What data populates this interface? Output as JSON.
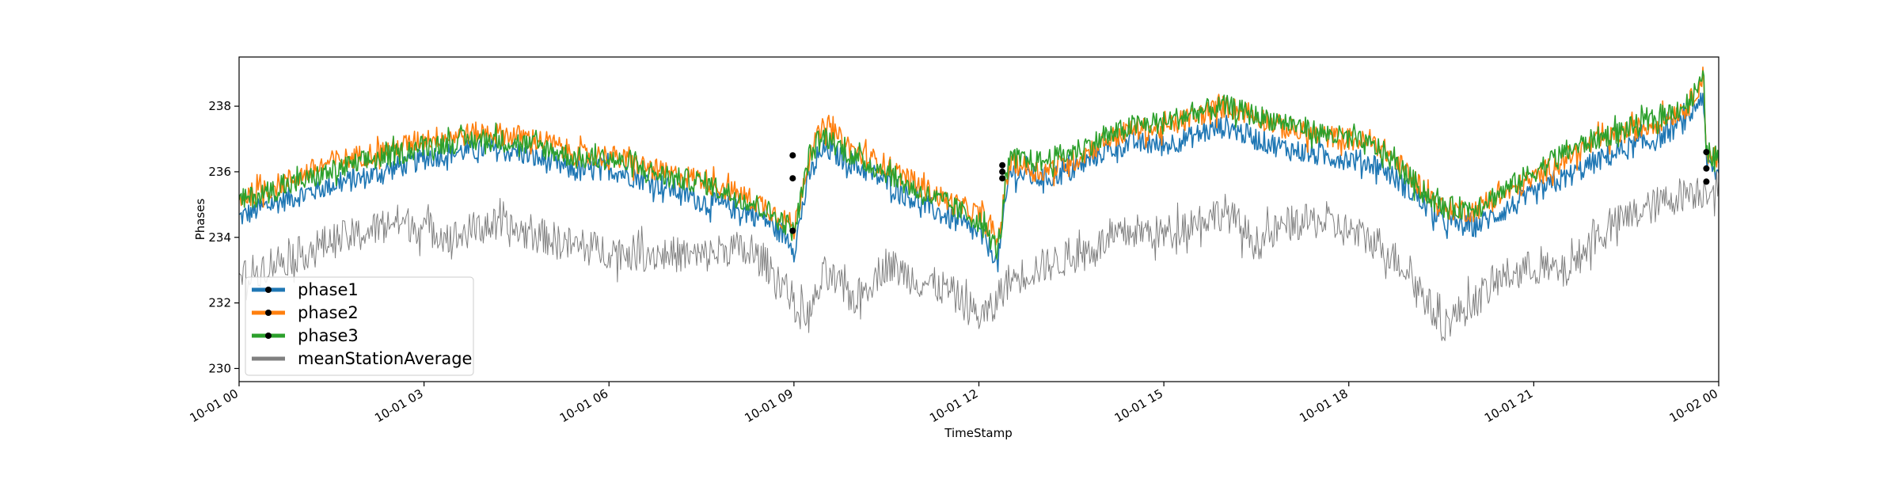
{
  "chart_data": {
    "type": "line",
    "title": "",
    "xlabel": "TimeStamp",
    "ylabel": "Phases",
    "xlim": [
      "2019-10-01 00:00",
      "2019-10-02 00:00"
    ],
    "ylim": [
      229.6,
      239.5
    ],
    "x_ticks": [
      "10-01 00",
      "10-01 03",
      "10-01 06",
      "10-01 09",
      "10-01 12",
      "10-01 15",
      "10-01 18",
      "10-01 21",
      "10-02 00"
    ],
    "y_ticks": [
      230,
      232,
      234,
      236,
      238
    ],
    "grid": false,
    "legend_position": "lower-left",
    "x_hours": [
      0,
      0.5,
      1,
      1.5,
      2,
      2.5,
      3,
      3.5,
      4,
      4.5,
      5,
      5.5,
      6,
      6.5,
      7,
      7.5,
      8,
      8.5,
      8.95,
      9,
      9.25,
      9.5,
      10,
      10.5,
      11,
      11.5,
      12,
      12.25,
      12.3,
      12.5,
      13,
      13.5,
      14,
      14.5,
      15,
      15.5,
      16,
      16.5,
      17,
      17.5,
      18,
      18.5,
      19,
      19.5,
      20,
      20.5,
      21,
      21.5,
      22,
      22.5,
      23,
      23.5,
      23.75,
      23.8,
      24
    ],
    "series": [
      {
        "name": "phase1",
        "color": "#1f77b4",
        "width": 1.6,
        "noise": 0.35,
        "values": [
          234.6,
          235.0,
          235.3,
          235.6,
          235.8,
          236.1,
          236.4,
          236.6,
          236.7,
          236.6,
          236.3,
          236.0,
          236.1,
          235.8,
          235.5,
          235.1,
          234.9,
          234.6,
          233.9,
          233.6,
          235.9,
          236.7,
          236.2,
          235.7,
          235.1,
          234.6,
          234.1,
          233.5,
          233.1,
          236.0,
          235.8,
          236.0,
          236.6,
          236.9,
          236.8,
          237.1,
          237.4,
          237.0,
          236.7,
          236.5,
          236.4,
          236.2,
          235.4,
          234.5,
          234.3,
          234.8,
          235.3,
          235.8,
          236.3,
          236.7,
          237.0,
          237.6,
          238.4,
          236.2,
          235.9
        ]
      },
      {
        "name": "phase2",
        "color": "#ff7f0e",
        "width": 1.6,
        "noise": 0.35,
        "values": [
          235.2,
          235.5,
          235.9,
          236.3,
          236.5,
          236.7,
          237.0,
          237.1,
          237.2,
          237.1,
          236.9,
          236.5,
          236.5,
          236.2,
          235.9,
          235.8,
          235.4,
          235.0,
          234.4,
          234.2,
          236.6,
          237.4,
          236.6,
          236.2,
          235.6,
          235.1,
          234.7,
          234.1,
          233.8,
          236.3,
          236.0,
          236.3,
          236.9,
          237.3,
          237.3,
          237.7,
          238.0,
          237.7,
          237.3,
          237.1,
          237.0,
          236.8,
          235.9,
          234.9,
          234.8,
          235.3,
          235.8,
          236.4,
          236.9,
          237.2,
          237.5,
          238.0,
          238.9,
          236.6,
          236.4
        ]
      },
      {
        "name": "phase3",
        "color": "#2ca02c",
        "width": 1.6,
        "noise": 0.35,
        "values": [
          235.1,
          235.4,
          235.7,
          236.0,
          236.3,
          236.5,
          236.8,
          236.9,
          237.0,
          236.9,
          236.7,
          236.4,
          236.4,
          236.1,
          235.8,
          235.7,
          235.3,
          234.9,
          234.3,
          234.1,
          236.5,
          237.1,
          236.4,
          236.0,
          235.4,
          235.0,
          234.5,
          233.8,
          233.6,
          236.4,
          236.3,
          236.6,
          237.0,
          237.4,
          237.5,
          237.8,
          238.0,
          237.7,
          237.5,
          237.2,
          237.0,
          236.7,
          235.8,
          234.9,
          234.9,
          235.4,
          236.0,
          236.6,
          237.0,
          237.3,
          237.6,
          238.1,
          238.8,
          236.6,
          236.4
        ]
      },
      {
        "name": "meanStationAverage",
        "color": "#808080",
        "width": 1.0,
        "noise": 0.55,
        "values": [
          232.7,
          233.2,
          233.5,
          233.9,
          234.1,
          234.5,
          234.3,
          234.0,
          234.4,
          234.2,
          234.0,
          233.7,
          233.6,
          233.5,
          233.5,
          233.4,
          233.7,
          233.3,
          232.3,
          231.8,
          231.6,
          232.9,
          232.1,
          233.2,
          232.7,
          232.4,
          231.6,
          231.8,
          232.2,
          232.7,
          233.1,
          233.4,
          233.8,
          234.2,
          234.1,
          234.5,
          234.8,
          233.8,
          234.4,
          234.5,
          234.2,
          233.8,
          232.9,
          231.3,
          232.0,
          232.8,
          233.1,
          232.9,
          234.0,
          234.6,
          235.0,
          235.4,
          235.4,
          235.5,
          235.6
        ]
      }
    ],
    "markers": {
      "color": "#000000",
      "points": [
        {
          "x": 8.98,
          "y": 236.5
        },
        {
          "x": 8.98,
          "y": 235.8
        },
        {
          "x": 8.98,
          "y": 234.2
        },
        {
          "x": 12.38,
          "y": 236.2
        },
        {
          "x": 12.38,
          "y": 236.0
        },
        {
          "x": 12.38,
          "y": 235.8
        },
        {
          "x": 23.8,
          "y": 236.6
        },
        {
          "x": 23.8,
          "y": 236.1
        },
        {
          "x": 23.8,
          "y": 235.7
        }
      ]
    },
    "legend": [
      {
        "label": "phase1",
        "color": "#1f77b4",
        "marker": true
      },
      {
        "label": "phase2",
        "color": "#ff7f0e",
        "marker": true
      },
      {
        "label": "phase3",
        "color": "#2ca02c",
        "marker": true
      },
      {
        "label": "meanStationAverage",
        "color": "#808080",
        "marker": false
      }
    ]
  }
}
